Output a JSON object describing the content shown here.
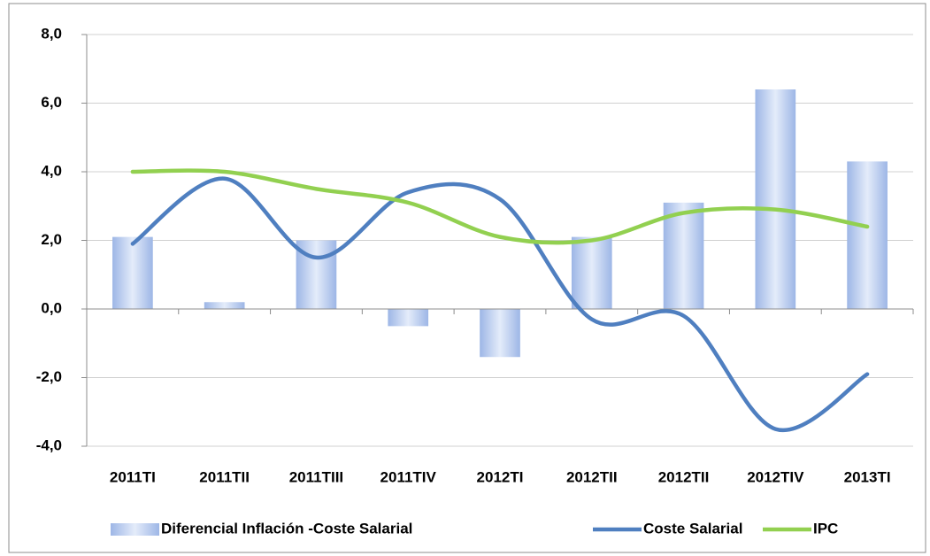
{
  "chart_data": {
    "type": "bar_line",
    "categories": [
      "2011TI",
      "2011TII",
      "2011TIII",
      "2011TIV",
      "2012TI",
      "2012TII",
      "2012TII",
      "2012TIV",
      "2013TI"
    ],
    "series": [
      {
        "name": "Diferencial Inflación -Coste Salarial",
        "type": "bar",
        "color": "#6f95d6",
        "values": [
          2.1,
          0.2,
          2.0,
          -0.5,
          -1.4,
          2.1,
          3.1,
          6.4,
          4.3
        ]
      },
      {
        "name": "Coste Salarial",
        "type": "line",
        "color": "#4f7fc0",
        "values": [
          1.9,
          3.8,
          1.5,
          3.4,
          3.2,
          -0.3,
          -0.2,
          -3.5,
          -1.9
        ]
      },
      {
        "name": "IPC",
        "type": "line",
        "color": "#92d050",
        "values": [
          4.0,
          4.0,
          3.5,
          3.1,
          2.1,
          2.0,
          2.8,
          2.9,
          2.4
        ]
      }
    ],
    "ylim": [
      -4,
      8
    ],
    "yticks": [
      {
        "value": -4,
        "label": "-4,0"
      },
      {
        "value": -2,
        "label": "-2,0"
      },
      {
        "value": 0,
        "label": "0,0"
      },
      {
        "value": 2,
        "label": "2,0"
      },
      {
        "value": 4,
        "label": "4,0"
      },
      {
        "value": 6,
        "label": "6,0"
      },
      {
        "value": 8,
        "label": "8,0"
      }
    ],
    "grid": true,
    "legend": "bottom"
  }
}
